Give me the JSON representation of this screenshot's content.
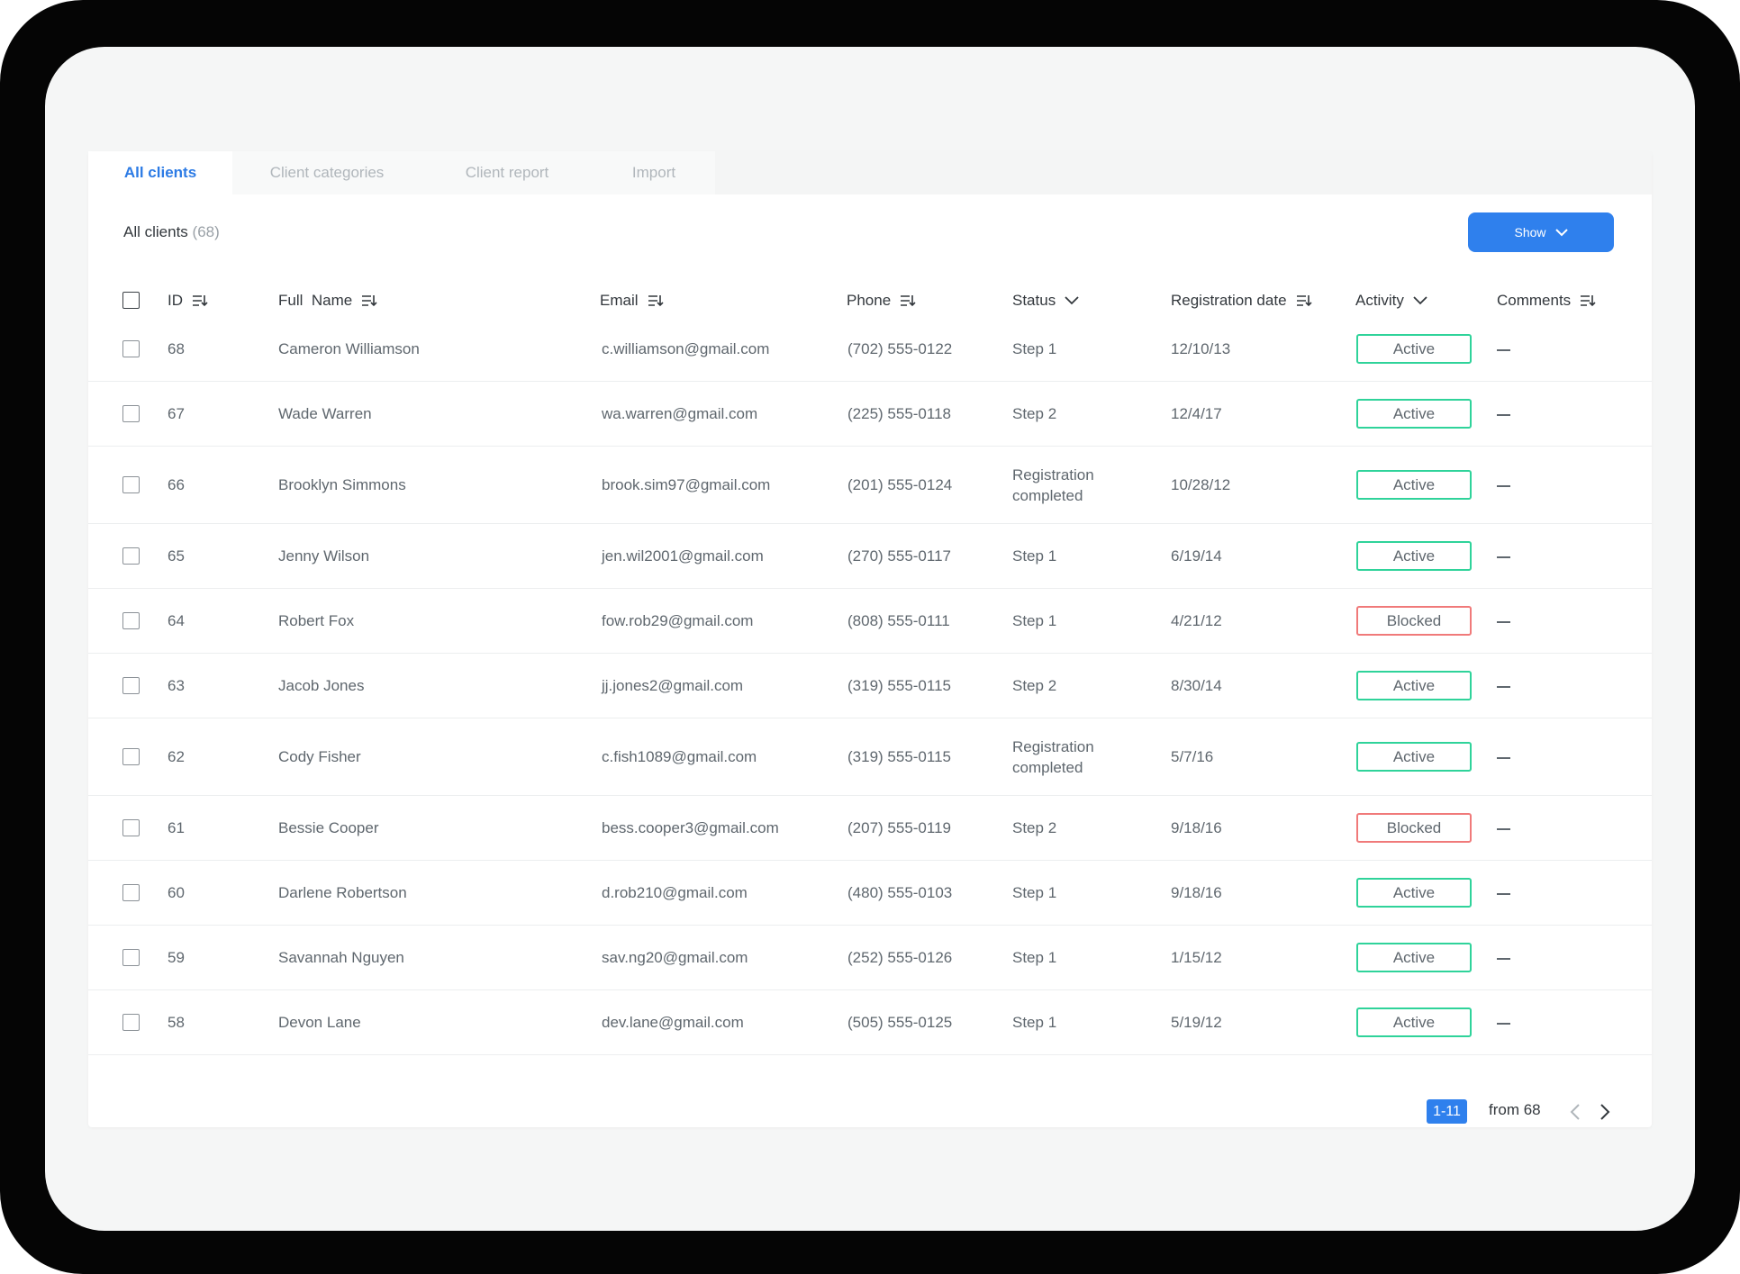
{
  "tabs": [
    {
      "label": "All clients",
      "active": true
    },
    {
      "label": "Client categories",
      "active": false
    },
    {
      "label": "Client report",
      "active": false
    },
    {
      "label": "Import",
      "active": false
    }
  ],
  "header": {
    "title": "All clients",
    "count": "(68)"
  },
  "show_button": {
    "label": "Show",
    "icon": "chevron-down-icon"
  },
  "columns": {
    "id": "ID",
    "full_name": "Full  Name",
    "email": "Email",
    "phone": "Phone",
    "status": "Status",
    "registration_date": "Registration date",
    "activity": "Activity",
    "comments": "Comments"
  },
  "rows": [
    {
      "id": "68",
      "name": "Cameron Williamson",
      "email": "c.williamson@gmail.com",
      "phone": "(702) 555-0122",
      "status": "Step 1",
      "date": "12/10/13",
      "activity": "Active"
    },
    {
      "id": "67",
      "name": "Wade Warren",
      "email": "wa.warren@gmail.com",
      "phone": "(225) 555-0118",
      "status": "Step 2",
      "date": "12/4/17",
      "activity": "Active"
    },
    {
      "id": "66",
      "name": "Brooklyn Simmons",
      "email": "brook.sim97@gmail.com",
      "phone": "(201) 555-0124",
      "status": "Registration completed",
      "date": "10/28/12",
      "activity": "Active"
    },
    {
      "id": "65",
      "name": "Jenny Wilson",
      "email": "jen.wil2001@gmail.com",
      "phone": "(270) 555-0117",
      "status": "Step 1",
      "date": "6/19/14",
      "activity": "Active"
    },
    {
      "id": "64",
      "name": "Robert Fox",
      "email": "fow.rob29@gmail.com",
      "phone": "(808) 555-0111",
      "status": "Step 1",
      "date": "4/21/12",
      "activity": "Blocked"
    },
    {
      "id": "63",
      "name": "Jacob Jones",
      "email": "jj.jones2@gmail.com",
      "phone": "(319) 555-0115",
      "status": "Step 2",
      "date": "8/30/14",
      "activity": "Active"
    },
    {
      "id": "62",
      "name": "Cody Fisher",
      "email": "c.fish1089@gmail.com",
      "phone": "(319) 555-0115",
      "status": "Registration completed",
      "date": "5/7/16",
      "activity": "Active"
    },
    {
      "id": "61",
      "name": "Bessie Cooper",
      "email": "bess.cooper3@gmail.com",
      "phone": "(207) 555-0119",
      "status": "Step 2",
      "date": "9/18/16",
      "activity": "Blocked"
    },
    {
      "id": "60",
      "name": "Darlene Robertson",
      "email": "d.rob210@gmail.com",
      "phone": "(480) 555-0103",
      "status": "Step 1",
      "date": "9/18/16",
      "activity": "Active"
    },
    {
      "id": "59",
      "name": "Savannah Nguyen",
      "email": "sav.ng20@gmail.com",
      "phone": "(252) 555-0126",
      "status": "Step 1",
      "date": "1/15/12",
      "activity": "Active"
    },
    {
      "id": "58",
      "name": "Devon Lane",
      "email": "dev.lane@gmail.com",
      "phone": "(505) 555-0125",
      "status": "Step 1",
      "date": "5/19/12",
      "activity": "Active"
    }
  ],
  "pagination": {
    "range": "1-11",
    "from_label": "from 68"
  },
  "colors": {
    "accent": "#2f80ed",
    "active": "#2fd39a",
    "blocked": "#f07a7a"
  }
}
